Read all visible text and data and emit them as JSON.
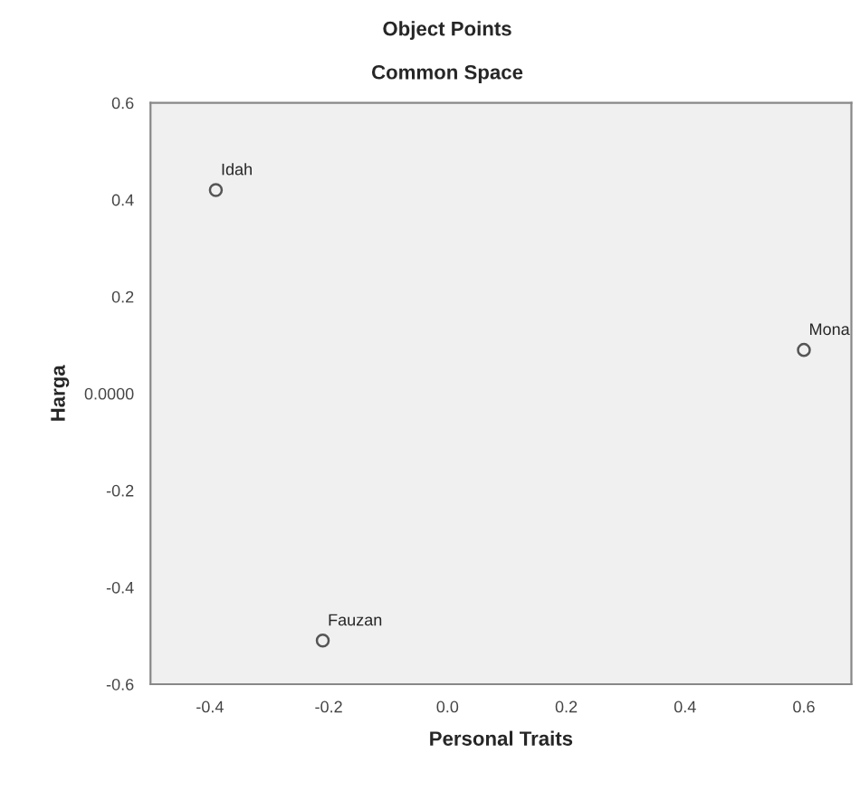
{
  "chart_data": {
    "type": "scatter",
    "title": "Object Points",
    "subtitle": "Common Space",
    "xlabel": "Personal Traits",
    "ylabel": "Harga",
    "x": [
      -0.39,
      -0.21,
      0.6
    ],
    "values": [
      0.42,
      -0.51,
      0.09
    ],
    "color": "#555555",
    "marker": "circle",
    "annotations": [
      {
        "text": "Idah",
        "x": -0.39,
        "y": 0.42
      },
      {
        "text": "Fauzan",
        "x": -0.21,
        "y": -0.51
      },
      {
        "text": "Mona",
        "x": 0.6,
        "y": 0.09
      }
    ],
    "xlim": [
      -0.5,
      0.68
    ],
    "ylim": [
      -0.6,
      0.6
    ],
    "xticks": [
      -0.4,
      -0.2,
      {
        "value": 0,
        "label": "0.0"
      },
      0.2,
      0.4,
      0.6
    ],
    "yticks": [
      -0.6,
      -0.4,
      -0.2,
      {
        "value": 0,
        "label": "0.0000"
      },
      0.2,
      0.4,
      0.6
    ],
    "grid": false
  }
}
